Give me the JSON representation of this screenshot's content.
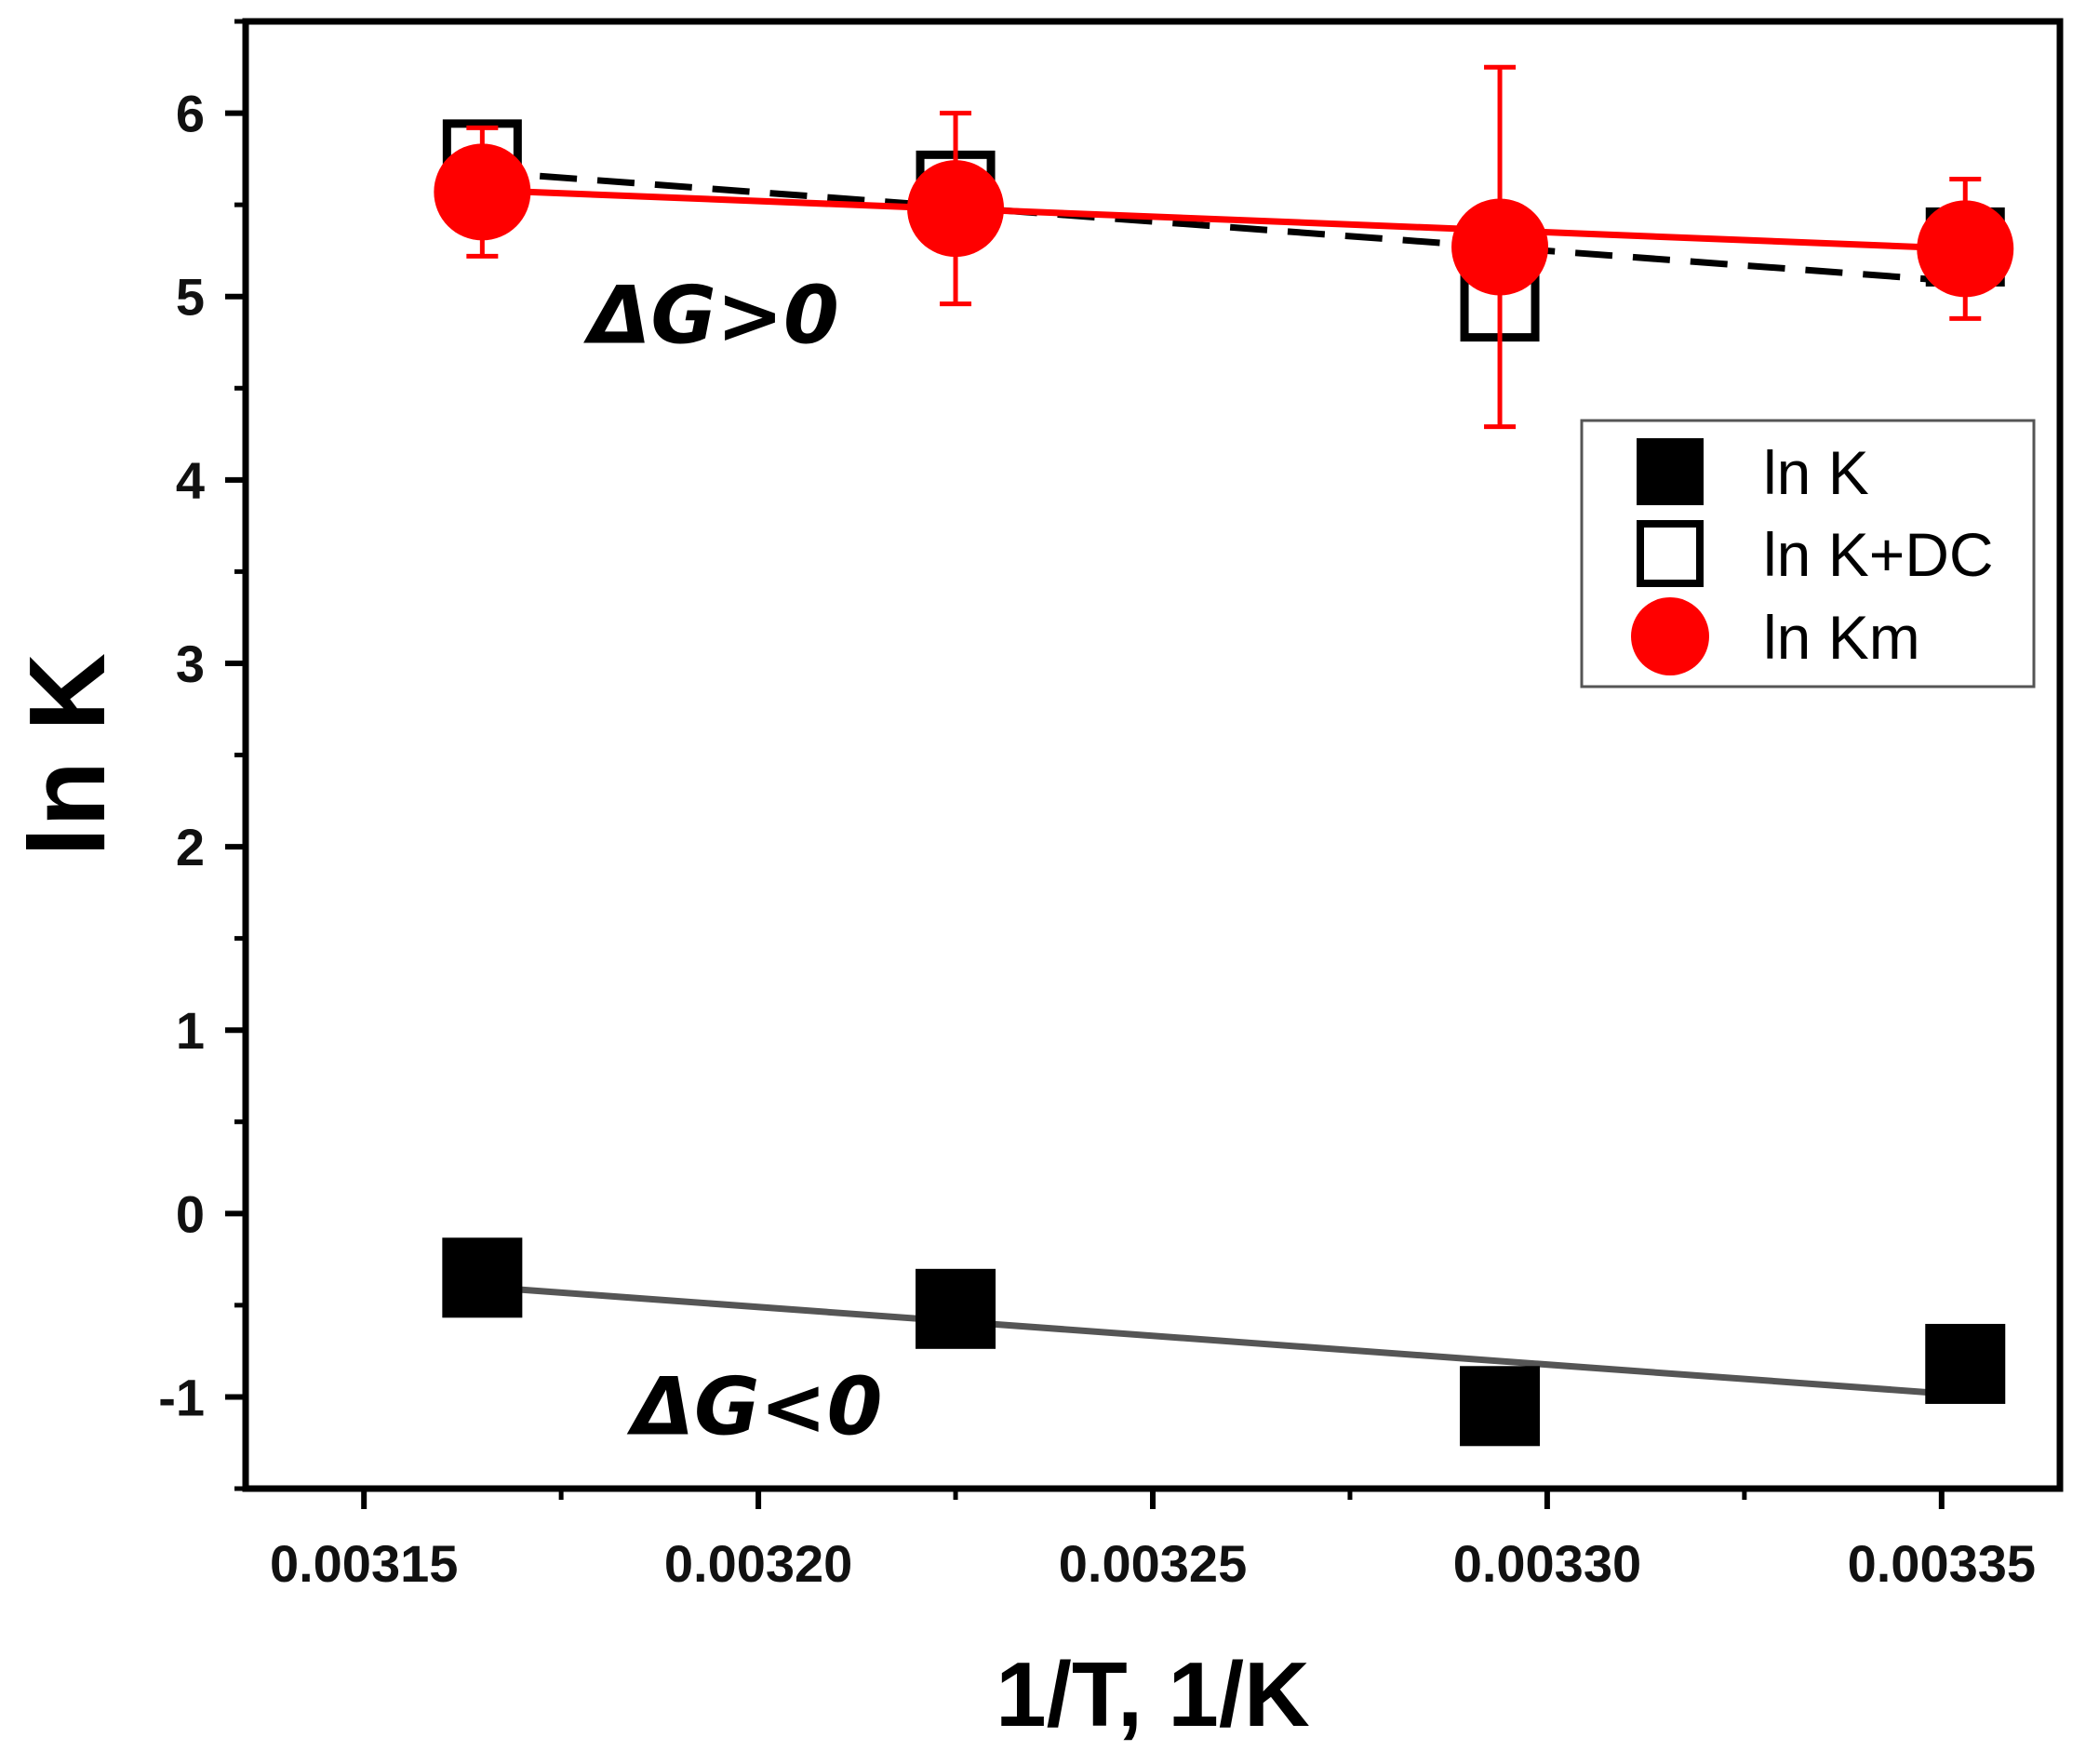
{
  "chart_data": {
    "type": "scatter",
    "title": "",
    "xlabel": "1/T, 1/K",
    "ylabel": "ln K",
    "xlim": [
      0.003135,
      0.003365
    ],
    "ylim": [
      -1.5,
      6.5
    ],
    "xticks": [
      0.00315,
      0.0032,
      0.00325,
      0.0033,
      0.00335
    ],
    "xtick_labels": [
      "0.00315",
      "0.00320",
      "0.00325",
      "0.00330",
      "0.00335"
    ],
    "yticks": [
      -1,
      0,
      1,
      2,
      3,
      4,
      5,
      6
    ],
    "ytick_labels": [
      "-1",
      "0",
      "1",
      "2",
      "3",
      "4",
      "5",
      "6"
    ],
    "grid": false,
    "legend_position": "top-right",
    "series": [
      {
        "name": "ln K",
        "marker": "filled-square",
        "color": "#000000",
        "x": [
          0.003165,
          0.003225,
          0.003294,
          0.003353
        ],
        "y": [
          -0.35,
          -0.52,
          -1.05,
          -0.82
        ],
        "fit": {
          "x": [
            0.003165,
            0.003353
          ],
          "y": [
            -0.4,
            -0.99
          ],
          "style": "solid",
          "color": "#555555"
        }
      },
      {
        "name": "ln K+DC",
        "marker": "open-square",
        "color": "#000000",
        "x": [
          0.003165,
          0.003225,
          0.003294,
          0.003353
        ],
        "y": [
          5.75,
          5.58,
          4.97,
          5.27
        ],
        "fit": {
          "x": [
            0.003165,
            0.003353
          ],
          "y": [
            5.68,
            5.08
          ],
          "style": "dashed",
          "color": "#000000"
        }
      },
      {
        "name": "ln Km",
        "marker": "filled-circle",
        "color": "#ff0000",
        "x": [
          0.003165,
          0.003225,
          0.003294,
          0.003353
        ],
        "y": [
          5.57,
          5.48,
          5.27,
          5.26
        ],
        "yerr": [
          0.35,
          0.52,
          0.98,
          0.38
        ],
        "fit": {
          "x": [
            0.003165,
            0.003353
          ],
          "y": [
            5.58,
            5.26
          ],
          "style": "solid",
          "color": "#ff0000"
        }
      }
    ],
    "annotations": [
      {
        "text": "ΔG>0",
        "x": 0.0031785,
        "y": 4.9
      },
      {
        "text": "ΔG<0",
        "x": 0.003184,
        "y": -1.05
      }
    ]
  }
}
